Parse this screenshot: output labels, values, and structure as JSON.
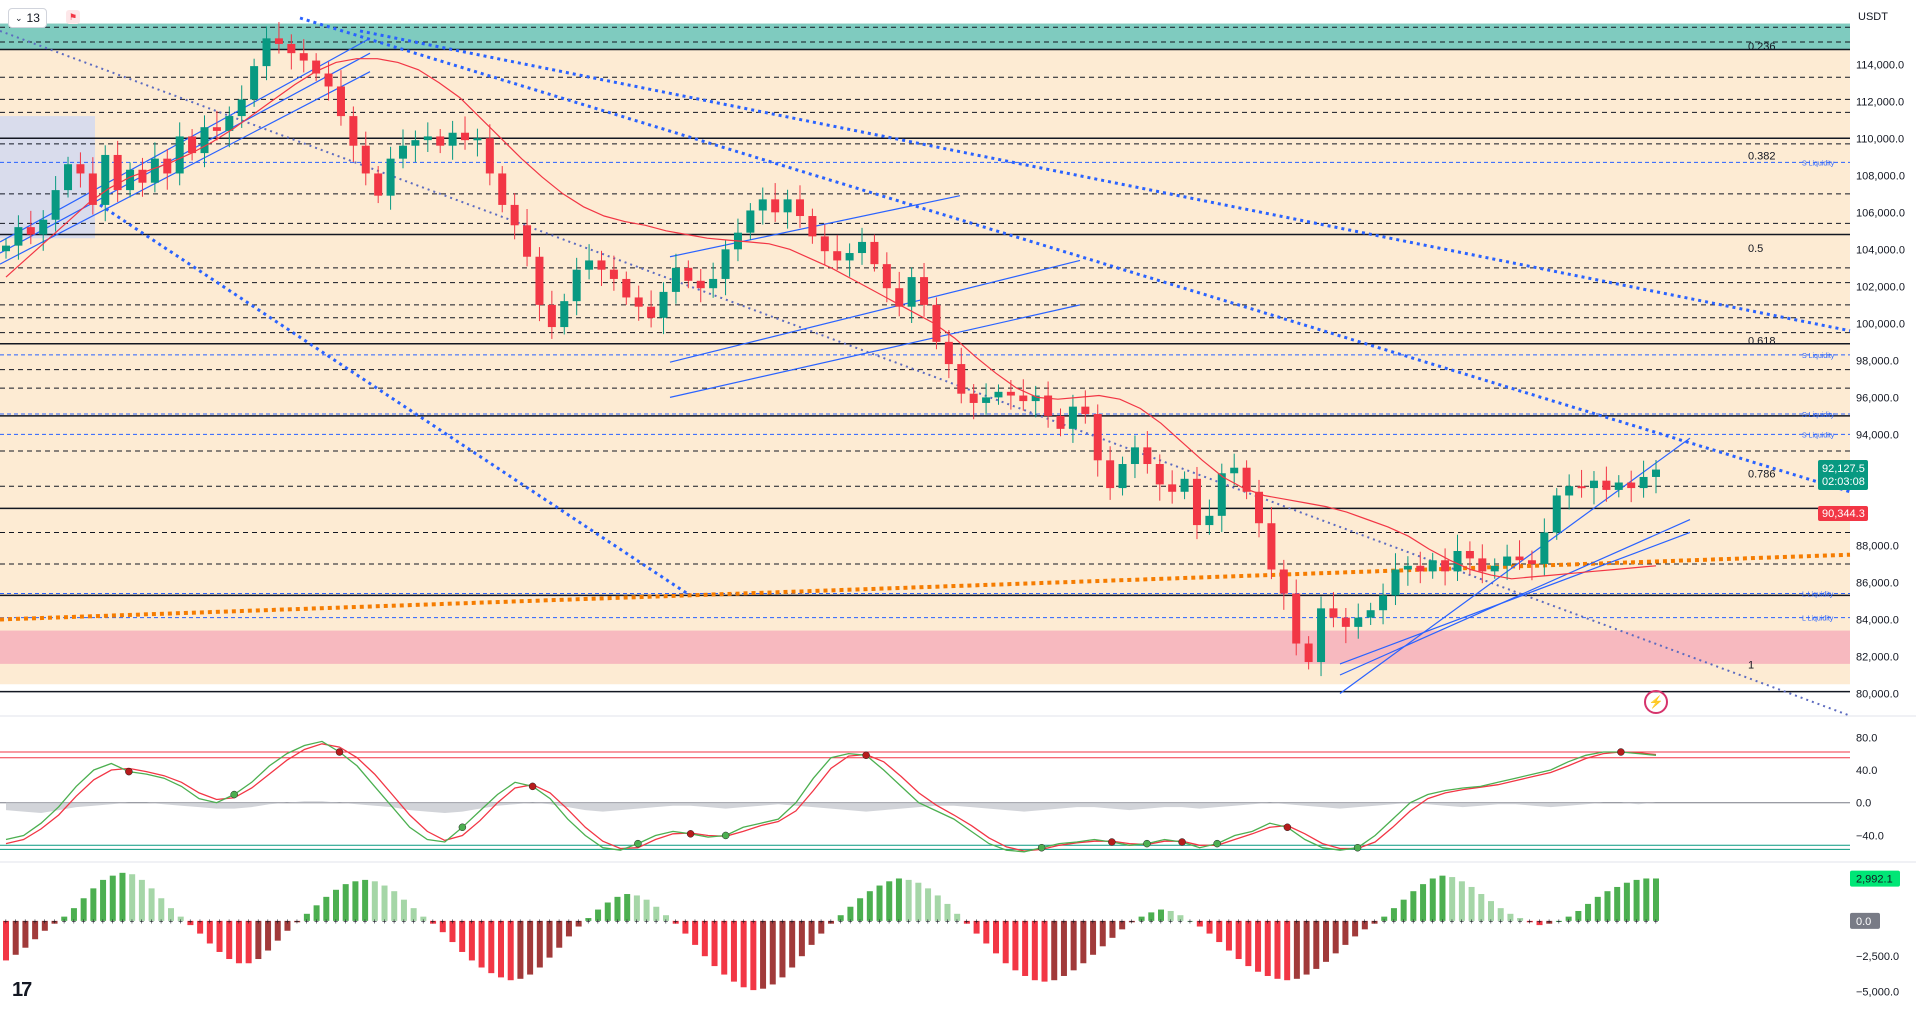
{
  "header": {
    "interval_label": "13",
    "currency": "USDT"
  },
  "icons": {
    "interval": "chevron-down-icon",
    "alert": "alert-flag-icon",
    "logo": "tradingview-logo-icon",
    "lightning": "lightning-icon"
  },
  "branding": {
    "logo_text": "17"
  },
  "colors": {
    "up": "#089981",
    "down": "#f23645",
    "fib_zone": "#fdebd3",
    "top_band": "#7fcbbf",
    "bottom_band": "#f7b9bf",
    "channel": "#2962ff",
    "orange_trend": "#f57c00",
    "price_badge": "#089981",
    "level_badge": "#f23645"
  },
  "chart_data": [
    {
      "type": "candlestick",
      "title": "",
      "y_axis_ticks": [
        "114,000.0",
        "112,000.0",
        "110,000.0",
        "108,000.0",
        "106,000.0",
        "104,000.0",
        "102,000.0",
        "100,000.0",
        "98,000.0",
        "96,000.0",
        "94,000.0",
        "88,000.0",
        "86,000.0",
        "84,000.0",
        "82,000.0",
        "80,000.0"
      ],
      "ylim": [
        79000,
        116500
      ],
      "current_price": "92,127.5",
      "countdown": "02:03:08",
      "marked_level": "90,344.3",
      "fib_levels": [
        {
          "label": "0.236",
          "price": 114600
        },
        {
          "label": "0.382",
          "price": 108700
        },
        {
          "label": "0.5",
          "price": 103700
        },
        {
          "label": "0.618",
          "price": 98700
        },
        {
          "label": "0.786",
          "price": 91500
        },
        {
          "label": "1",
          "price": 81200
        }
      ],
      "liquidity_labels": [
        {
          "label": "S Liquidity",
          "price": 108700
        },
        {
          "label": "S Liquidity",
          "price": 98300
        },
        {
          "label": "S Liquidity",
          "price": 95100
        },
        {
          "label": "S Liquidity",
          "price": 94000
        },
        {
          "label": "L Liquidity",
          "price": 85400
        },
        {
          "label": "L Liquidity",
          "price": 84100
        }
      ],
      "solid_levels": [
        114800,
        110000,
        104800,
        98900,
        95000,
        90000,
        85300,
        80100
      ],
      "dashed_levels": [
        116000,
        115200,
        113300,
        112100,
        111400,
        109700,
        107000,
        105400,
        103000,
        102200,
        101000,
        100300,
        99500,
        97500,
        96500,
        93100,
        91200,
        88700,
        87000
      ],
      "top_zone": [
        114800,
        116200
      ],
      "bottom_zone": [
        81600,
        83400
      ],
      "close_path": [
        104200,
        105200,
        104800,
        105600,
        107200,
        108600,
        108100,
        106400,
        109100,
        107200,
        108300,
        107600,
        108900,
        108100,
        110100,
        109200,
        110600,
        110400,
        111200,
        112100,
        113900,
        115400,
        115100,
        114600,
        114200,
        113500,
        112800,
        111200,
        109600,
        108100,
        106900,
        108900,
        109600,
        109900,
        110100,
        109600,
        110300,
        109900,
        110000,
        108100,
        106400,
        105300,
        103600,
        101000,
        99800,
        101200,
        102900,
        103400,
        102900,
        102400,
        101400,
        100900,
        100300,
        101700,
        103000,
        102300,
        101900,
        102400,
        104000,
        104900,
        106100,
        106700,
        106000,
        106700,
        105800,
        104700,
        103900,
        103400,
        103800,
        104400,
        103200,
        101900,
        100900,
        102500,
        101000,
        99000,
        97800,
        96200,
        95700,
        96000,
        96300,
        96100,
        95800,
        96100,
        95000,
        94300,
        95500,
        95100,
        92600,
        91100,
        92400,
        93300,
        92400,
        91300,
        90900,
        91600,
        89100,
        89600,
        91900,
        92200,
        90900,
        89200,
        86700,
        85400,
        82700,
        81700,
        84600,
        84100,
        83600,
        84100,
        84500,
        85300,
        86700,
        86900,
        86600,
        87200,
        86600,
        87700,
        87300,
        86600,
        86900,
        87400,
        87200,
        87000,
        88700,
        90700,
        91200,
        91100,
        91500,
        91000,
        91400,
        91100,
        91700,
        92100
      ],
      "ma_path": [
        102500,
        103500,
        104500,
        105500,
        106500,
        107300,
        107900,
        108300,
        108700,
        109200,
        109800,
        110500,
        111300,
        112100,
        112900,
        113600,
        114100,
        114300,
        114300,
        114100,
        113700,
        113000,
        112200,
        111100,
        110000,
        108900,
        107900,
        107000,
        106300,
        105800,
        105500,
        105300,
        105000,
        104800,
        104600,
        104500,
        104400,
        104300,
        104000,
        103500,
        103000,
        102400,
        101800,
        101200,
        100600,
        100000,
        99200,
        98200,
        97300,
        96500,
        96000,
        95900,
        96000,
        96100,
        95900,
        95400,
        94600,
        93600,
        92600,
        91700,
        91100,
        90700,
        90500,
        90300,
        90100,
        89800,
        89400,
        89000,
        88500,
        87800,
        87200,
        86700,
        86400,
        86200,
        86300,
        86400,
        86500,
        86600,
        86700,
        86800,
        86900
      ],
      "oscillator": {
        "levels": [
          "80.0",
          "40.0",
          "0.0",
          "−40.0"
        ],
        "ylim": [
          -70,
          95
        ],
        "upper_band": [
          55,
          62
        ],
        "lower_band": [
          -52,
          -57
        ],
        "fast": [
          -45,
          -40,
          -25,
          -5,
          20,
          40,
          48,
          38,
          35,
          30,
          20,
          5,
          0,
          10,
          25,
          45,
          60,
          70,
          75,
          62,
          45,
          20,
          -5,
          -30,
          -45,
          -48,
          -30,
          -10,
          10,
          25,
          20,
          5,
          -20,
          -40,
          -55,
          -58,
          -50,
          -40,
          -35,
          -38,
          -42,
          -40,
          -30,
          -25,
          -20,
          0,
          30,
          55,
          60,
          58,
          40,
          20,
          0,
          -10,
          -20,
          -35,
          -50,
          -58,
          -60,
          -55,
          -50,
          -48,
          -45,
          -48,
          -52,
          -50,
          -45,
          -48,
          -55,
          -50,
          -40,
          -35,
          -25,
          -30,
          -45,
          -55,
          -58,
          -55,
          -40,
          -20,
          0,
          10,
          15,
          18,
          20,
          25,
          30,
          35,
          40,
          50,
          58,
          62,
          62,
          60,
          58
        ],
        "slow": [
          -50,
          -45,
          -32,
          -15,
          8,
          28,
          40,
          42,
          38,
          33,
          25,
          12,
          4,
          6,
          18,
          35,
          52,
          65,
          72,
          68,
          55,
          35,
          10,
          -15,
          -35,
          -46,
          -40,
          -22,
          0,
          18,
          22,
          12,
          -8,
          -30,
          -47,
          -56,
          -55,
          -45,
          -38,
          -37,
          -40,
          -41,
          -35,
          -28,
          -23,
          -10,
          15,
          42,
          57,
          59,
          50,
          32,
          12,
          -3,
          -15,
          -28,
          -43,
          -54,
          -59,
          -57,
          -52,
          -49,
          -47,
          -47,
          -50,
          -51,
          -47,
          -47,
          -52,
          -52,
          -45,
          -38,
          -30,
          -28,
          -38,
          -50,
          -56,
          -56,
          -48,
          -30,
          -10,
          5,
          12,
          16,
          19,
          22,
          27,
          32,
          37,
          45,
          54,
          60,
          62,
          61,
          59
        ],
        "histogram": [
          -5,
          -6,
          -7,
          -5,
          -3,
          -2,
          -1,
          0,
          0,
          -1,
          -2,
          -3,
          -4,
          -4,
          -3,
          -1,
          0,
          1,
          1,
          0,
          -1,
          -2,
          -3,
          -5,
          -6,
          -7,
          -6,
          -4,
          -2,
          -1,
          0,
          -1,
          -3,
          -5,
          -6,
          -5,
          -4,
          -3,
          -2,
          -2,
          -3,
          -4,
          -3,
          -2,
          -1,
          -2,
          -3,
          -4,
          -5,
          -6,
          -5,
          -4,
          -3,
          -2,
          -2,
          -3,
          -4,
          -5,
          -6,
          -5,
          -4,
          -3,
          -3,
          -4,
          -5,
          -4,
          -3,
          -3,
          -4,
          -3,
          -2,
          -1,
          0,
          -1,
          -2,
          -3,
          -4,
          -3,
          -2,
          -1,
          0,
          -1,
          -2,
          -3,
          -2,
          -1,
          -1,
          -2,
          -3,
          -2,
          -1,
          0,
          0,
          -1,
          0
        ]
      }
    },
    {
      "type": "bar",
      "title": "",
      "y_axis_ticks": [
        "−2,500.0",
        "−5,000.0"
      ],
      "current_value": "2,992.1",
      "zero_label": "0.0",
      "ylim": [
        -5600,
        3600
      ],
      "values": [
        -2800,
        -2400,
        -1900,
        -1300,
        -700,
        -200,
        300,
        900,
        1600,
        2300,
        2900,
        3200,
        3400,
        3300,
        2900,
        2300,
        1600,
        900,
        300,
        -300,
        -900,
        -1600,
        -2200,
        -2700,
        -3000,
        -3000,
        -2700,
        -2100,
        -1400,
        -700,
        -100,
        500,
        1100,
        1700,
        2200,
        2600,
        2800,
        2900,
        2800,
        2500,
        2100,
        1500,
        900,
        300,
        -200,
        -800,
        -1500,
        -2200,
        -2800,
        -3300,
        -3700,
        -4000,
        -4200,
        -4100,
        -3800,
        -3300,
        -2600,
        -1900,
        -1100,
        -400,
        200,
        800,
        1300,
        1700,
        1900,
        1800,
        1500,
        1000,
        400,
        -200,
        -900,
        -1700,
        -2500,
        -3200,
        -3800,
        -4300,
        -4700,
        -4900,
        -4800,
        -4500,
        -4000,
        -3300,
        -2500,
        -1700,
        -900,
        -200,
        400,
        1000,
        1600,
        2100,
        2500,
        2800,
        3000,
        2900,
        2700,
        2300,
        1800,
        1200,
        500,
        -200,
        -900,
        -1600,
        -2300,
        -3000,
        -3500,
        -3900,
        -4200,
        -4300,
        -4200,
        -3900,
        -3500,
        -3000,
        -2400,
        -1800,
        -1200,
        -600,
        -100,
        300,
        600,
        800,
        700,
        400,
        0,
        -400,
        -900,
        -1500,
        -2100,
        -2700,
        -3200,
        -3600,
        -3900,
        -4100,
        -4200,
        -4100,
        -3800,
        -3400,
        -2900,
        -2300,
        -1700,
        -1100,
        -600,
        -200,
        300,
        900,
        1500,
        2100,
        2600,
        3000,
        3200,
        3100,
        2800,
        2400,
        1900,
        1400,
        900,
        500,
        200,
        -100,
        -300,
        -200,
        0,
        300,
        700,
        1200,
        1700,
        2100,
        2400,
        2700,
        2900,
        3000,
        3000
      ]
    }
  ]
}
